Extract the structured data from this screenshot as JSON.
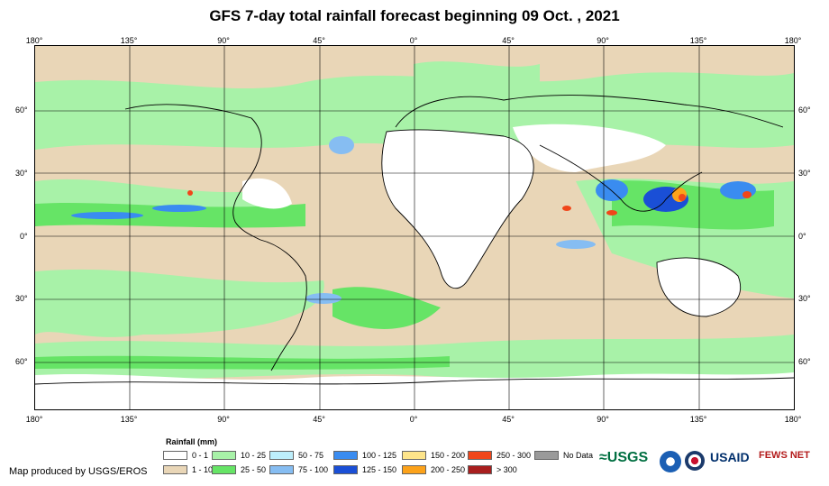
{
  "title": "GFS 7-day total rainfall forecast beginning 09 Oct. , 2021",
  "lon_labels": [
    "180°",
    "135°",
    "90°",
    "45°",
    "0°",
    "45°",
    "90°",
    "135°",
    "180°"
  ],
  "lat_labels": [
    "60°",
    "30°",
    "0°",
    "30°",
    "60°"
  ],
  "legend": {
    "title": "Rainfall (mm)",
    "items": [
      {
        "label": "0 - 1",
        "color": "#ffffff"
      },
      {
        "label": "1 - 10",
        "color": "#e9d6b7"
      },
      {
        "label": "10 - 25",
        "color": "#a8f2a8"
      },
      {
        "label": "25 - 50",
        "color": "#66e466"
      },
      {
        "label": "50 - 75",
        "color": "#bdeefb"
      },
      {
        "label": "75 - 100",
        "color": "#86bdf2"
      },
      {
        "label": "100 - 125",
        "color": "#3a8cf0"
      },
      {
        "label": "125 - 150",
        "color": "#1a4fd6"
      },
      {
        "label": "150 - 200",
        "color": "#fde48a"
      },
      {
        "label": "200 - 250",
        "color": "#fca21a"
      },
      {
        "label": "250 - 300",
        "color": "#f0461a"
      },
      {
        "label": "> 300",
        "color": "#a81e1e"
      },
      {
        "label": "No Data",
        "color": "#9a9a9a"
      }
    ]
  },
  "credit": "Map produced by USGS/EROS",
  "logos": {
    "usgs": "≈USGS",
    "noaa": "noaa-logo",
    "dhs": "dhs-logo",
    "usaid": "USAID",
    "fews": "FEWS NET"
  }
}
